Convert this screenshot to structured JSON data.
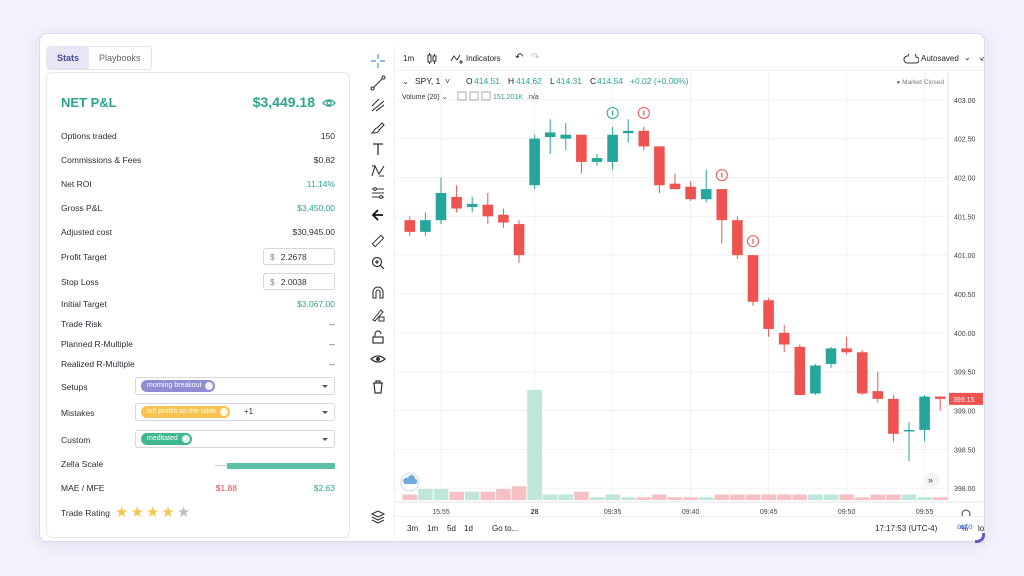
{
  "tabs": {
    "stats": "Stats",
    "playbooks": "Playbooks"
  },
  "summary": {
    "title": "NET P&L",
    "value": "$3,449.18"
  },
  "rows": {
    "options_traded": {
      "label": "Options traded",
      "value": "150"
    },
    "commissions": {
      "label": "Commissions & Fees",
      "value": "$0.82"
    },
    "net_roi": {
      "label": "Net ROI",
      "value": "11.14%"
    },
    "gross_pnl": {
      "label": "Gross P&L",
      "value": "$3,450.00"
    },
    "adjusted_cost": {
      "label": "Adjusted cost",
      "value": "$30,945.00"
    },
    "profit_target": {
      "label": "Profit Target",
      "currency": "$",
      "value": "2.2678"
    },
    "stop_loss": {
      "label": "Stop Loss",
      "currency": "$",
      "value": "2.0038"
    },
    "initial_target": {
      "label": "Initial Target",
      "value": "$3,067.00"
    },
    "trade_risk": {
      "label": "Trade Risk",
      "value": "--"
    },
    "planned_r": {
      "label": "Planned R-Multiple",
      "value": "--"
    },
    "realized_r": {
      "label": "Realized R-Multiple",
      "value": "--"
    },
    "setups": {
      "label": "Setups",
      "chip": "morning breakout"
    },
    "mistakes": {
      "label": "Mistakes",
      "chip": "left profits on the table",
      "extra": "+1"
    },
    "custom": {
      "label": "Custom",
      "chip": "meditated"
    },
    "zella_scale": {
      "label": "Zella Scale",
      "level": 0.9
    },
    "mae_mfe": {
      "label": "MAE / MFE",
      "mae": "$1.88",
      "mfe": "$2.63"
    },
    "trade_rating": {
      "label": "Trade Rating",
      "stars": 4,
      "max": 5
    }
  },
  "colors": {
    "accent": "#2ba58e",
    "red": "#e0484b",
    "up": "#26a69a",
    "down": "#ef5350"
  },
  "toolbar": {
    "interval": "1m",
    "indicators": "Indicators",
    "autosaved": "Autosaved"
  },
  "legend": {
    "symbol": "SPY, 1",
    "o_label": "O",
    "o": "414.51",
    "h_label": "H",
    "h": "414.62",
    "l_label": "L",
    "l": "414.31",
    "c_label": "C",
    "c": "414.54",
    "change": "+0.02 (+0.00%)",
    "status": "Market Closed",
    "volume_label": "Volume (20)",
    "volume_value": "151.201K",
    "volume_na": "n/a"
  },
  "bottom": {
    "ranges": [
      "3m",
      "1m",
      "5d",
      "1d"
    ],
    "goto": "Go to...",
    "time": "17:17:53 (UTC-4)",
    "pct": "%",
    "log": "log",
    "auto": "auto"
  },
  "chart_data": {
    "type": "candlestick",
    "ylim": [
      397.9,
      403.1
    ],
    "y_ticks": [
      "403.00",
      "402.50",
      "402.00",
      "401.50",
      "401.00",
      "400.50",
      "400.00",
      "399.50",
      "399.00",
      "398.50",
      "398.00"
    ],
    "y_tick_values": [
      403.0,
      402.5,
      402.0,
      401.5,
      401.0,
      400.5,
      400.0,
      399.5,
      399.0,
      398.5,
      398.0
    ],
    "x_ticks": [
      "15:55",
      "28",
      "09:35",
      "09:40",
      "09:45",
      "09:50",
      "09:55"
    ],
    "x_tick_index": [
      2,
      8,
      13,
      18,
      23,
      28,
      33
    ],
    "last_price": "399.15",
    "candles": [
      {
        "o": 401.45,
        "h": 401.5,
        "l": 401.25,
        "c": 401.3
      },
      {
        "o": 401.3,
        "h": 401.55,
        "l": 401.25,
        "c": 401.45
      },
      {
        "o": 401.45,
        "h": 402.0,
        "l": 401.4,
        "c": 401.8
      },
      {
        "o": 401.75,
        "h": 401.9,
        "l": 401.55,
        "c": 401.6
      },
      {
        "o": 401.62,
        "h": 401.75,
        "l": 401.55,
        "c": 401.66
      },
      {
        "o": 401.65,
        "h": 401.8,
        "l": 401.4,
        "c": 401.5
      },
      {
        "o": 401.52,
        "h": 401.6,
        "l": 401.35,
        "c": 401.42
      },
      {
        "o": 401.4,
        "h": 401.45,
        "l": 400.9,
        "c": 401.0
      },
      {
        "o": 401.9,
        "h": 402.55,
        "l": 401.85,
        "c": 402.5
      },
      {
        "o": 402.52,
        "h": 402.75,
        "l": 402.3,
        "c": 402.58
      },
      {
        "o": 402.5,
        "h": 402.7,
        "l": 402.35,
        "c": 402.55
      },
      {
        "o": 402.55,
        "h": 402.55,
        "l": 402.05,
        "c": 402.2
      },
      {
        "o": 402.2,
        "h": 402.3,
        "l": 402.15,
        "c": 402.25
      },
      {
        "o": 402.2,
        "h": 402.65,
        "l": 402.1,
        "c": 402.55
      },
      {
        "o": 402.57,
        "h": 402.75,
        "l": 402.45,
        "c": 402.6
      },
      {
        "o": 402.6,
        "h": 402.65,
        "l": 402.35,
        "c": 402.4
      },
      {
        "o": 402.4,
        "h": 402.4,
        "l": 401.8,
        "c": 401.9
      },
      {
        "o": 401.92,
        "h": 402.05,
        "l": 401.85,
        "c": 401.85
      },
      {
        "o": 401.88,
        "h": 401.95,
        "l": 401.7,
        "c": 401.72
      },
      {
        "o": 401.72,
        "h": 402.1,
        "l": 401.68,
        "c": 401.85
      },
      {
        "o": 401.85,
        "h": 401.85,
        "l": 401.15,
        "c": 401.45
      },
      {
        "o": 401.45,
        "h": 401.5,
        "l": 400.95,
        "c": 401.0
      },
      {
        "o": 401.0,
        "h": 401.0,
        "l": 400.35,
        "c": 400.4
      },
      {
        "o": 400.42,
        "h": 400.45,
        "l": 399.95,
        "c": 400.05
      },
      {
        "o": 400.0,
        "h": 400.1,
        "l": 399.75,
        "c": 399.85
      },
      {
        "o": 399.82,
        "h": 399.85,
        "l": 399.2,
        "c": 399.2
      },
      {
        "o": 399.22,
        "h": 399.6,
        "l": 399.2,
        "c": 399.58
      },
      {
        "o": 399.6,
        "h": 399.82,
        "l": 399.55,
        "c": 399.8
      },
      {
        "o": 399.8,
        "h": 399.95,
        "l": 399.72,
        "c": 399.75
      },
      {
        "o": 399.75,
        "h": 399.78,
        "l": 399.2,
        "c": 399.22
      },
      {
        "o": 399.25,
        "h": 399.5,
        "l": 399.1,
        "c": 399.15
      },
      {
        "o": 399.15,
        "h": 399.2,
        "l": 398.6,
        "c": 398.7
      },
      {
        "o": 398.75,
        "h": 398.85,
        "l": 398.35,
        "c": 398.75
      },
      {
        "o": 398.75,
        "h": 399.2,
        "l": 398.6,
        "c": 399.18
      },
      {
        "o": 399.18,
        "h": 399.18,
        "l": 399.0,
        "c": 399.15
      }
    ],
    "volume": [
      2,
      4,
      4,
      3,
      3,
      3,
      4,
      5,
      40,
      2,
      2,
      3,
      1,
      2,
      1,
      1,
      2,
      1,
      1,
      1,
      2,
      2,
      2,
      2,
      2,
      2,
      2,
      2,
      2,
      1,
      2,
      2,
      2,
      1,
      1
    ],
    "markers": [
      13,
      15,
      20,
      22
    ]
  }
}
